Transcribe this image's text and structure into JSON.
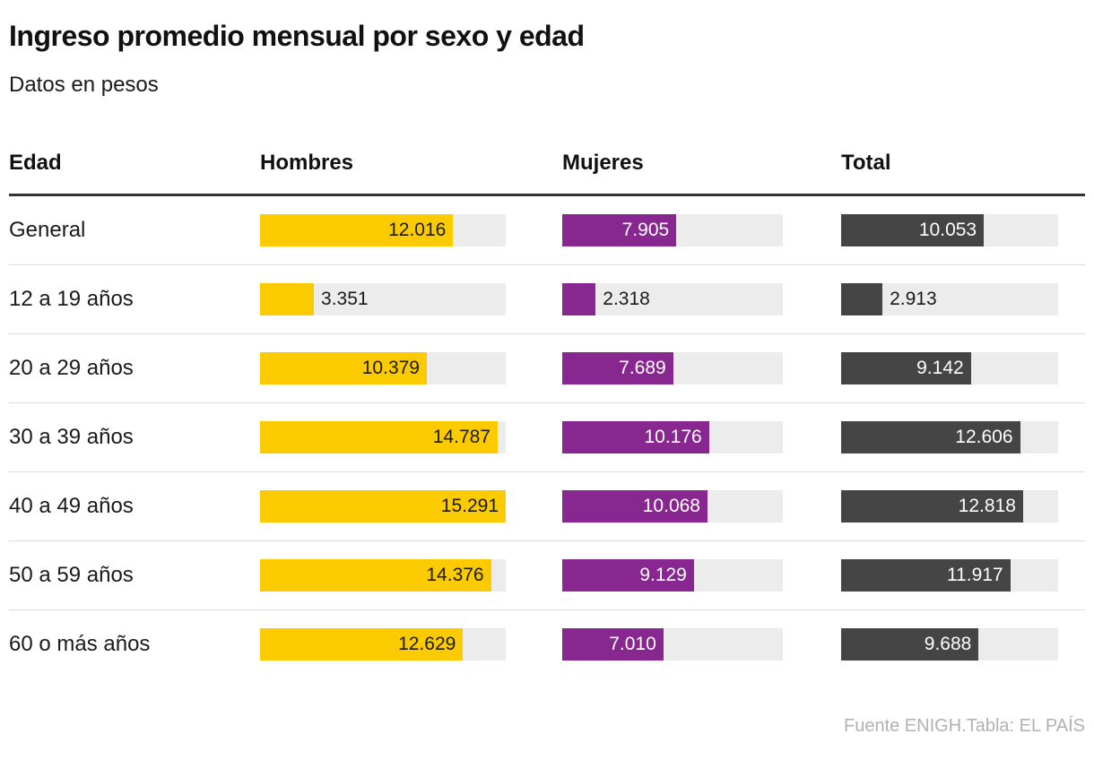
{
  "header": {
    "title": "Ingreso promedio mensual por sexo y edad",
    "subtitle": "Datos en pesos"
  },
  "table": {
    "columns": [
      "Edad",
      "Hombres",
      "Mujeres",
      "Total"
    ]
  },
  "footer": {
    "source": "Fuente ENIGH.Tabla: EL PAÍS"
  },
  "colors": {
    "hombres": "#fbcb00",
    "mujeres": "#87278f",
    "total": "#454545",
    "track": "#ececec",
    "label_on_yellow": "#1a1a1a",
    "label_on_dark": "#ffffff",
    "label_outside": "#1a1a1a",
    "header_rule": "#333333",
    "row_separator": "#dddddd",
    "footer_text": "#b1b1b1"
  },
  "chart_data": {
    "type": "bar",
    "orientation": "horizontal",
    "title": "Ingreso promedio mensual por sexo y edad",
    "subtitle": "Datos en pesos",
    "ylabel": "Edad",
    "xlabel": "",
    "grid": false,
    "legend_position": "column-headers",
    "xmax": 15291,
    "categories": [
      "General",
      "12 a 19 años",
      "20 a 29 años",
      "30 a 39 años",
      "40 a 49 años",
      "50 a 59 años",
      "60 o más años"
    ],
    "series": [
      {
        "name": "Hombres",
        "color": "#fbcb00",
        "values": [
          12016,
          3351,
          10379,
          14787,
          15291,
          14376,
          12629
        ],
        "labels": [
          "12.016",
          "3.351",
          "10.379",
          "14.787",
          "15.291",
          "14.376",
          "12.629"
        ]
      },
      {
        "name": "Mujeres",
        "color": "#87278f",
        "values": [
          7905,
          2318,
          7689,
          10176,
          10068,
          9129,
          7010
        ],
        "labels": [
          "7.905",
          "2.318",
          "7.689",
          "10.176",
          "10.068",
          "9.129",
          "7.010"
        ]
      },
      {
        "name": "Total",
        "color": "#454545",
        "values": [
          10053,
          2913,
          9142,
          12606,
          12818,
          11917,
          9688
        ],
        "labels": [
          "10.053",
          "2.913",
          "9.142",
          "12.606",
          "12.818",
          "11.917",
          "9.688"
        ]
      }
    ]
  }
}
